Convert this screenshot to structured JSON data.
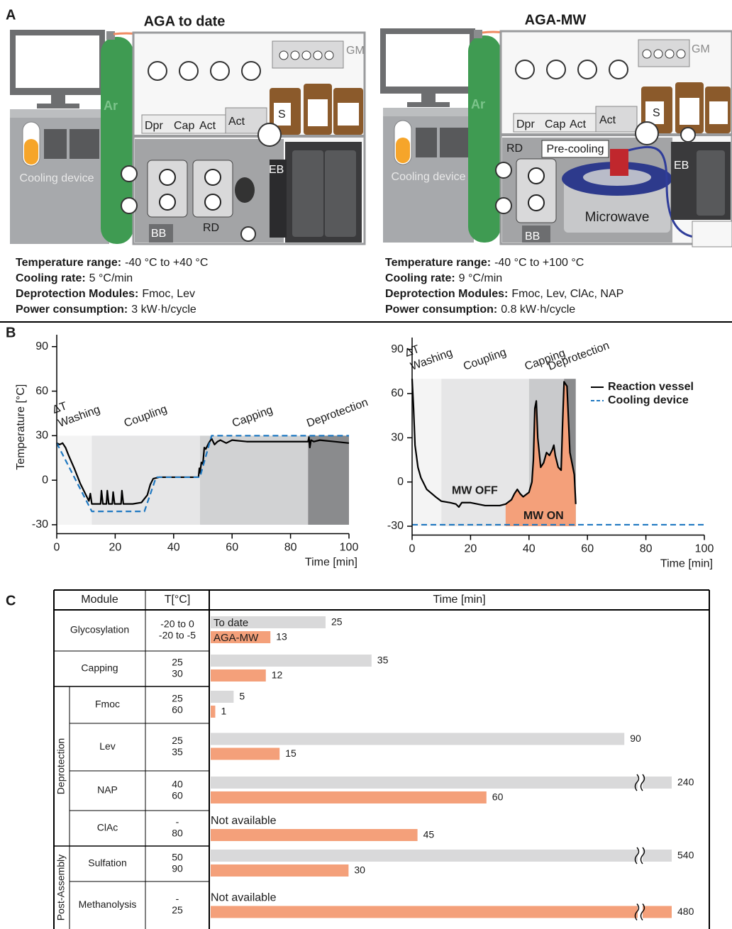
{
  "panel_labels": {
    "a": "A",
    "b": "B",
    "c": "C"
  },
  "panel_a": [
    {
      "title": "AGA to date",
      "labels": {
        "ar": "Ar",
        "gm": "GM",
        "dpr": "Dpr",
        "cap": "Cap",
        "act1": "Act",
        "act2": "Act",
        "s": "S",
        "eb": "EB",
        "rd": "RD",
        "bb": "BB",
        "cooling": "Cooling device"
      },
      "specs": [
        {
          "label": "Temperature range:",
          "value": "-40 °C to +40 °C"
        },
        {
          "label": "Cooling rate:",
          "value": "5 °C/min"
        },
        {
          "label": "Deprotection Modules:",
          "value": "Fmoc, Lev"
        },
        {
          "label": "Power consumption:",
          "value": "3 kW·h/cycle"
        }
      ]
    },
    {
      "title": "AGA-MW",
      "labels": {
        "ar": "Ar",
        "gm": "GM",
        "dpr": "Dpr",
        "cap": "Cap",
        "act1": "Act",
        "act2": "Act",
        "s": "S",
        "eb": "EB",
        "rd": "RD",
        "bb": "BB",
        "cooling": "Cooling device",
        "precooling": "Pre-cooling",
        "microwave": "Microwave"
      },
      "specs": [
        {
          "label": "Temperature range:",
          "value": "-40 °C to +100 °C"
        },
        {
          "label": "Cooling rate:",
          "value": "9 °C/min"
        },
        {
          "label": "Deprotection Modules:",
          "value": "Fmoc, Lev, ClAc, NAP"
        },
        {
          "label": "Power consumption:",
          "value": "0.8 kW·h/cycle"
        }
      ]
    }
  ],
  "chart_data": [
    {
      "type": "line",
      "ylabel": "Temperature [°C]",
      "xlabel": "Time [min]",
      "xlim": [
        0,
        100
      ],
      "ylim": [
        -36,
        98
      ],
      "xticks": [
        0,
        20,
        40,
        60,
        80,
        100
      ],
      "yticks": [
        -30,
        0,
        30,
        60,
        90
      ],
      "phases": [
        {
          "label": [
            "ΔT",
            "Washing"
          ],
          "start": 0,
          "end": 12,
          "y0": -30,
          "y1": 30,
          "color": "#f4f4f4"
        },
        {
          "label": [
            "Coupling"
          ],
          "start": 12,
          "end": 49,
          "y0": -30,
          "y1": 30,
          "color": "#e6e6e7"
        },
        {
          "label": [
            "Capping"
          ],
          "start": 49,
          "end": 86,
          "y0": -30,
          "y1": 30,
          "color": "#d1d2d3"
        },
        {
          "label": [
            "Deprotection"
          ],
          "start": 86,
          "end": 100,
          "y0": -30,
          "y1": 30,
          "color": "#8a8b8d"
        }
      ],
      "series": [
        {
          "color": "#000000",
          "style": "solid",
          "x": [
            0,
            1,
            2,
            3,
            4,
            6,
            8,
            10,
            11,
            11.5,
            12,
            15,
            15.3,
            15.8,
            17,
            17.3,
            17.8,
            19,
            19.3,
            19.8,
            22,
            22.3,
            22.8,
            26,
            29,
            31,
            32,
            33,
            35,
            40,
            45,
            48.5,
            48.8,
            49,
            49.5,
            50,
            50.5,
            51,
            52,
            53,
            54,
            55,
            56,
            58,
            60,
            65,
            70,
            80,
            86,
            86.3,
            86.6,
            87,
            88,
            90,
            95,
            100
          ],
          "values": [
            25,
            24,
            25,
            22,
            17,
            8,
            -2,
            -10,
            -14,
            -9,
            -16,
            -16,
            -7,
            -16,
            -16,
            -7,
            -16,
            -16,
            -8,
            -16,
            -16,
            -7,
            -16,
            -16,
            -15,
            -10,
            -3,
            1,
            2,
            2,
            2,
            2,
            8,
            5,
            12,
            11,
            22,
            21,
            25,
            28,
            24,
            26,
            27,
            25,
            27,
            26,
            26,
            26,
            26,
            29,
            22,
            27,
            26,
            27,
            26,
            25
          ]
        },
        {
          "color": "#1f78c1",
          "style": "dashed",
          "x": [
            0,
            12,
            30,
            34,
            49,
            53,
            100
          ],
          "values": [
            25,
            -21,
            -21,
            2,
            2,
            30,
            30
          ]
        }
      ]
    },
    {
      "type": "line",
      "xlabel": "Time [min]",
      "xlim": [
        0,
        100
      ],
      "ylim": [
        -36,
        98
      ],
      "xticks": [
        0,
        20,
        40,
        60,
        80,
        100
      ],
      "yticks": [
        -30,
        0,
        30,
        60,
        90
      ],
      "legend": "upper right",
      "annotations": [
        "MW OFF"
      ],
      "highlight": {
        "label": "MW ON",
        "start": 32,
        "end": 56,
        "base": -30,
        "color": "#f4a07a"
      },
      "phases": [
        {
          "label": [
            "ΔT",
            "Washing"
          ],
          "start": 0,
          "end": 10,
          "y0": -30,
          "y1": 70,
          "color": "#f4f4f4"
        },
        {
          "label": [
            "Coupling"
          ],
          "start": 10,
          "end": 40,
          "y0": -30,
          "y1": 70,
          "color": "#e6e6e7"
        },
        {
          "label": [
            "Capping"
          ],
          "start": 40,
          "end": 52,
          "y0": -30,
          "y1": 70,
          "color": "#c9cacc"
        },
        {
          "label": [
            "Deprotection"
          ],
          "start": 52,
          "end": 56,
          "y0": -30,
          "y1": 70,
          "color": "#8a8b8d"
        }
      ],
      "series": [
        {
          "name": "Reaction vessel",
          "color": "#000000",
          "style": "solid",
          "x": [
            0,
            0.5,
            1,
            2,
            3,
            5,
            8,
            10,
            13,
            15,
            16,
            17,
            20,
            25,
            30,
            32,
            34,
            35,
            36,
            37,
            38,
            40,
            41,
            41.5,
            42,
            42.5,
            43,
            44,
            45,
            46,
            47,
            48,
            48.5,
            49,
            50,
            51,
            51.5,
            52,
            53,
            54,
            55,
            55.5,
            56
          ],
          "values": [
            70,
            50,
            25,
            10,
            3,
            -5,
            -10,
            -13,
            -14,
            -15,
            -17,
            -14,
            -14,
            -16,
            -16,
            -15,
            -12,
            -8,
            -5,
            -8,
            -10,
            -7,
            0,
            15,
            50,
            55,
            30,
            10,
            13,
            20,
            18,
            22,
            25,
            18,
            10,
            8,
            40,
            68,
            65,
            20,
            10,
            5,
            -15
          ]
        },
        {
          "name": "Cooling device",
          "color": "#1f78c1",
          "style": "dashed",
          "x": [
            0,
            100
          ],
          "values": [
            -29,
            -29
          ]
        }
      ]
    }
  ],
  "table": {
    "headers": [
      "Module",
      "T[°C]",
      "Time [min]"
    ],
    "series": [
      {
        "name": "To date",
        "color": "#d9d9da"
      },
      {
        "name": "AGA-MW",
        "color": "#f4a07a"
      }
    ],
    "not_available": "Not available",
    "sections": [
      {
        "rows": [
          {
            "module": "Glycosylation",
            "temps": [
              "-20 to 0",
              "-20 to -5"
            ],
            "values": [
              25,
              13
            ]
          },
          {
            "module": "Capping",
            "temps": [
              "25",
              "30"
            ],
            "values": [
              35,
              12
            ]
          }
        ]
      },
      {
        "label": "Deprotection",
        "rows": [
          {
            "module": "Fmoc",
            "temps": [
              "25",
              "60"
            ],
            "values": [
              5,
              1
            ]
          },
          {
            "module": "Lev",
            "temps": [
              "25",
              "35"
            ],
            "values": [
              90,
              15
            ]
          },
          {
            "module": "NAP",
            "temps": [
              "40",
              "60"
            ],
            "values": [
              240,
              60
            ]
          },
          {
            "module": "ClAc",
            "temps": [
              "-",
              "80"
            ],
            "values": [
              null,
              45
            ]
          }
        ]
      },
      {
        "label": "Post-Assembly",
        "rows": [
          {
            "module": "Sulfation",
            "temps": [
              "50",
              "90"
            ],
            "values": [
              540,
              30
            ]
          },
          {
            "module": "Methanolysis",
            "temps": [
              "-",
              "25"
            ],
            "values": [
              null,
              480
            ]
          }
        ]
      }
    ]
  }
}
